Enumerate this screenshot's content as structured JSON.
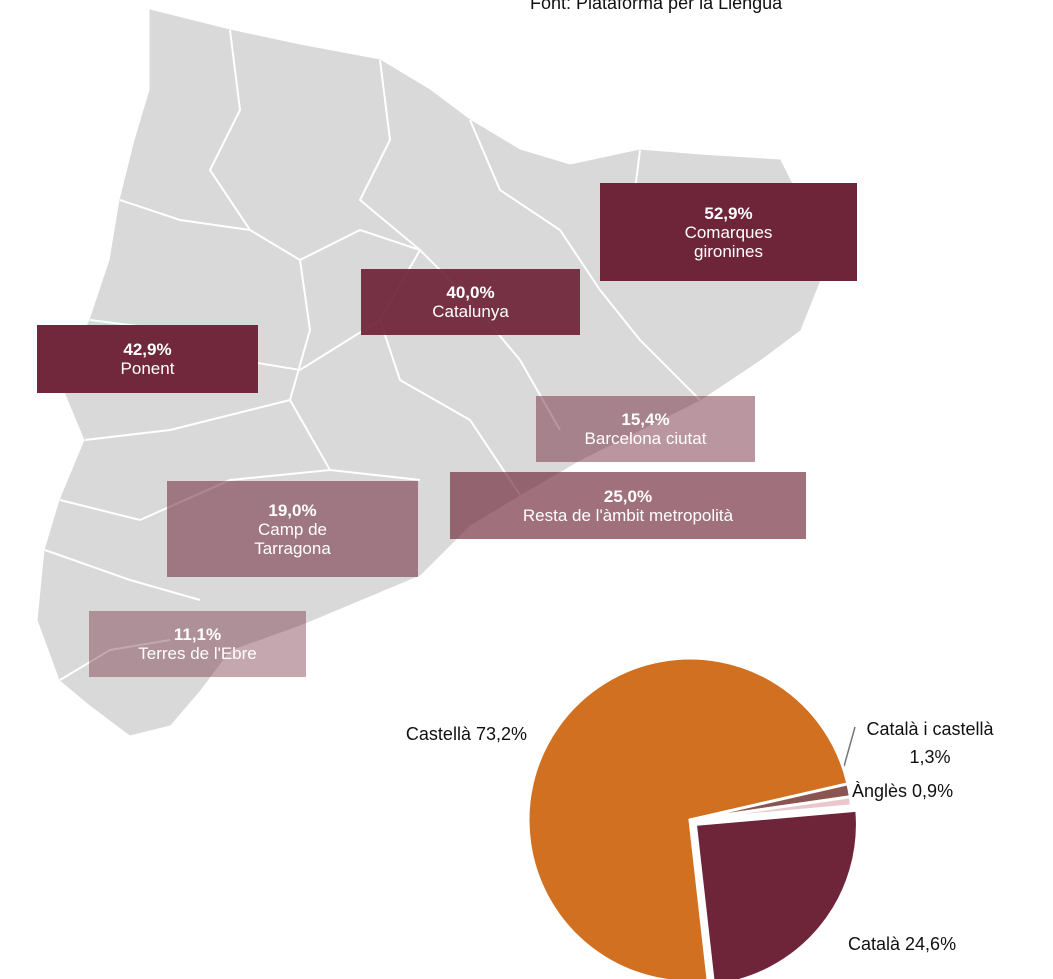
{
  "source": "Font: Plataforma per la Llengua",
  "regions": [
    {
      "name": "Comarques gironines",
      "value": 52.9,
      "value_label": "52,9%"
    },
    {
      "name": "Catalunya",
      "value": 40.0,
      "value_label": "40,0%"
    },
    {
      "name": "Ponent",
      "value": 42.9,
      "value_label": "42,9%"
    },
    {
      "name": "Barcelona ciutat",
      "value": 15.4,
      "value_label": "15,4%"
    },
    {
      "name": "Resta de l'àmbit metropolità",
      "value": 25.0,
      "value_label": "25,0%"
    },
    {
      "name": "Camp de Tarragona",
      "value": 19.0,
      "value_label": "19,0%"
    },
    {
      "name": "Terres de l'Ebre",
      "value": 11.1,
      "value_label": "11,1%"
    }
  ],
  "chart_data": {
    "type": "pie",
    "categories": [
      "Català",
      "Castellà",
      "Català i castellà",
      "Ànglès"
    ],
    "values": [
      24.6,
      73.2,
      1.3,
      0.9
    ],
    "value_labels": [
      "24,6%",
      "73,2%",
      "1,3%",
      "0,9%"
    ],
    "colors": [
      "#6e2439",
      "#d07020",
      "#8a5550",
      "#e8c8cc"
    ]
  }
}
